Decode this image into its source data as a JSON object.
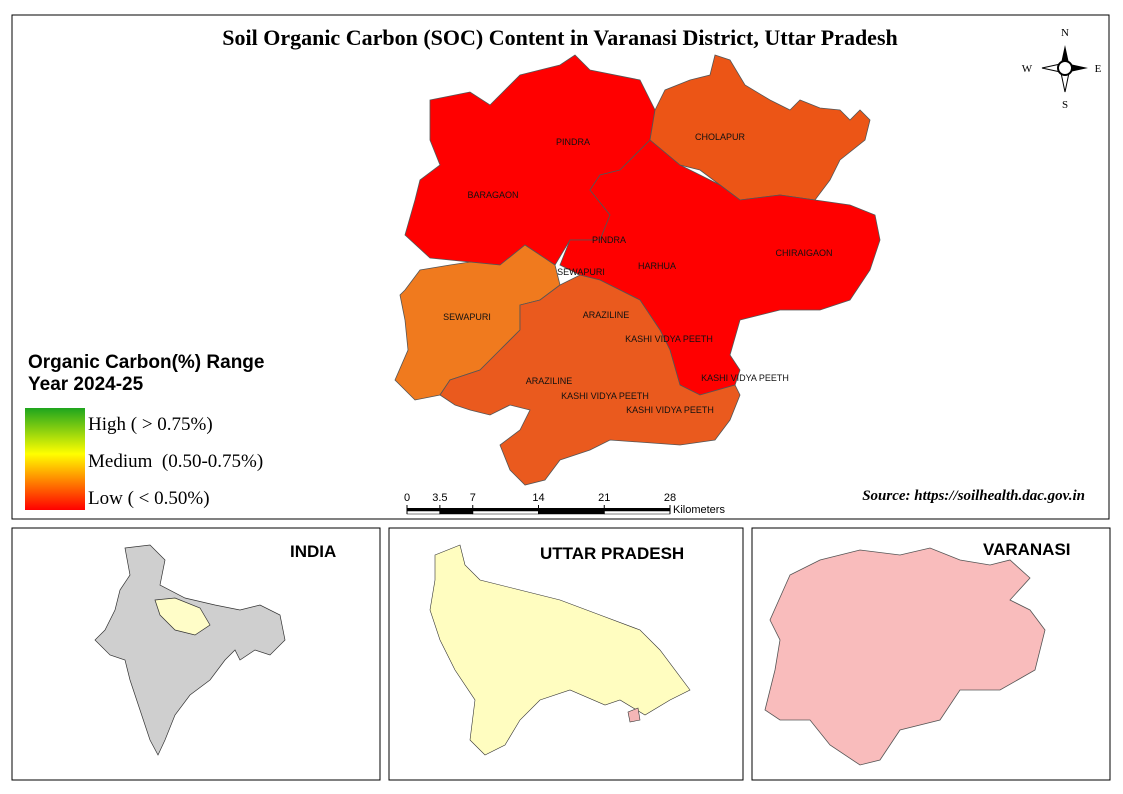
{
  "title": "Soil Organic Carbon (SOC) Content in Varanasi District, Uttar Pradesh",
  "compass": {
    "n": "N",
    "e": "E",
    "s": "S",
    "w": "W"
  },
  "region_labels": [
    "PINDRA",
    "CHOLAPUR",
    "BARAGAON",
    "PINDRA",
    "SEWAPURI",
    "HARHUA",
    "CHIRAIGAON",
    "SEWAPURI",
    "ARAZILINE",
    "KASHI VIDYA PEETH",
    "KASHI VIDYA PEETH",
    "ARAZILINE",
    "KASHI VIDYA PEETH",
    "KASHI VIDYA PEETH"
  ],
  "legend": {
    "title": "Organic Carbon(%) Range",
    "subtitle": "Year 2024-25",
    "items": [
      "High ( > 0.75%)",
      "Medium  (0.50-0.75%)",
      "Low ( < 0.50%)"
    ]
  },
  "scale_bar": {
    "ticks": [
      0,
      3.5,
      7,
      14,
      21,
      28
    ],
    "unit": "Kilometers"
  },
  "source": "Source: https://soilhealth.dac.gov.in",
  "insets": [
    "INDIA",
    "UTTAR PRADESH",
    "VARANASI"
  ]
}
